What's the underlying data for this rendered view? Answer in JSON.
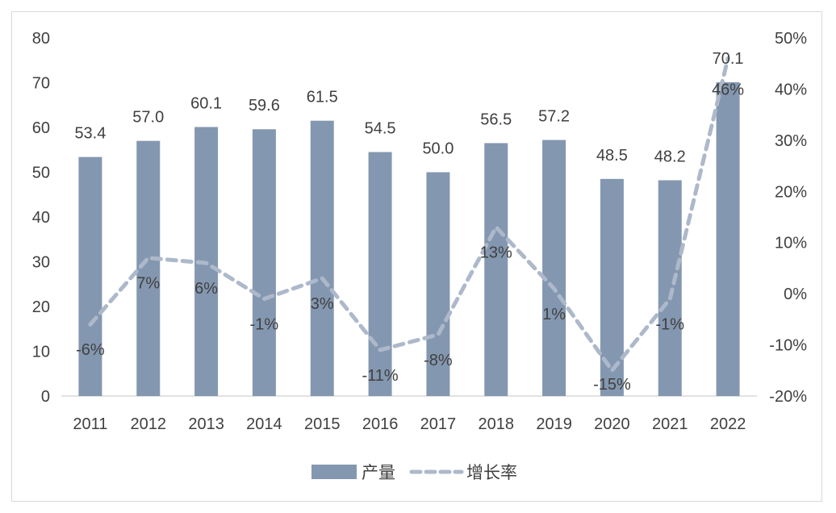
{
  "chart_data": {
    "type": "bar",
    "categories": [
      "2011",
      "2012",
      "2013",
      "2014",
      "2015",
      "2016",
      "2017",
      "2018",
      "2019",
      "2020",
      "2021",
      "2022"
    ],
    "series": [
      {
        "name": "产量",
        "kind": "bar",
        "axis": "left",
        "color": "#8497b0",
        "values": [
          53.4,
          57.0,
          60.1,
          59.6,
          61.5,
          54.5,
          50.0,
          56.5,
          57.2,
          48.5,
          48.2,
          70.1
        ],
        "labels": [
          "53.4",
          "57.0",
          "60.1",
          "59.6",
          "61.5",
          "54.5",
          "50.0",
          "56.5",
          "57.2",
          "48.5",
          "48.2",
          "70.1"
        ]
      },
      {
        "name": "增长率",
        "kind": "line",
        "style": "dashed",
        "axis": "right",
        "color": "#adb9ca",
        "values": [
          -6,
          7,
          6,
          -1,
          3,
          -11,
          -8,
          13,
          1,
          -15,
          -1,
          46
        ],
        "labels": [
          "-6%",
          "7%",
          "6%",
          "-1%",
          "3%",
          "-11%",
          "-8%",
          "13%",
          "1%",
          "-15%",
          "-1%",
          "46%"
        ]
      }
    ],
    "y_left": {
      "ylim": [
        0,
        80
      ],
      "ticks": [
        "0",
        "10",
        "20",
        "30",
        "40",
        "50",
        "60",
        "70",
        "80"
      ]
    },
    "y_right": {
      "ylim": [
        -20,
        50
      ],
      "ticks": [
        "-20%",
        "-10%",
        "0%",
        "10%",
        "20%",
        "30%",
        "40%",
        "50%"
      ]
    },
    "legend": {
      "position": "bottom",
      "items": [
        "产量",
        "增长率"
      ]
    },
    "grid": false,
    "title": ""
  }
}
